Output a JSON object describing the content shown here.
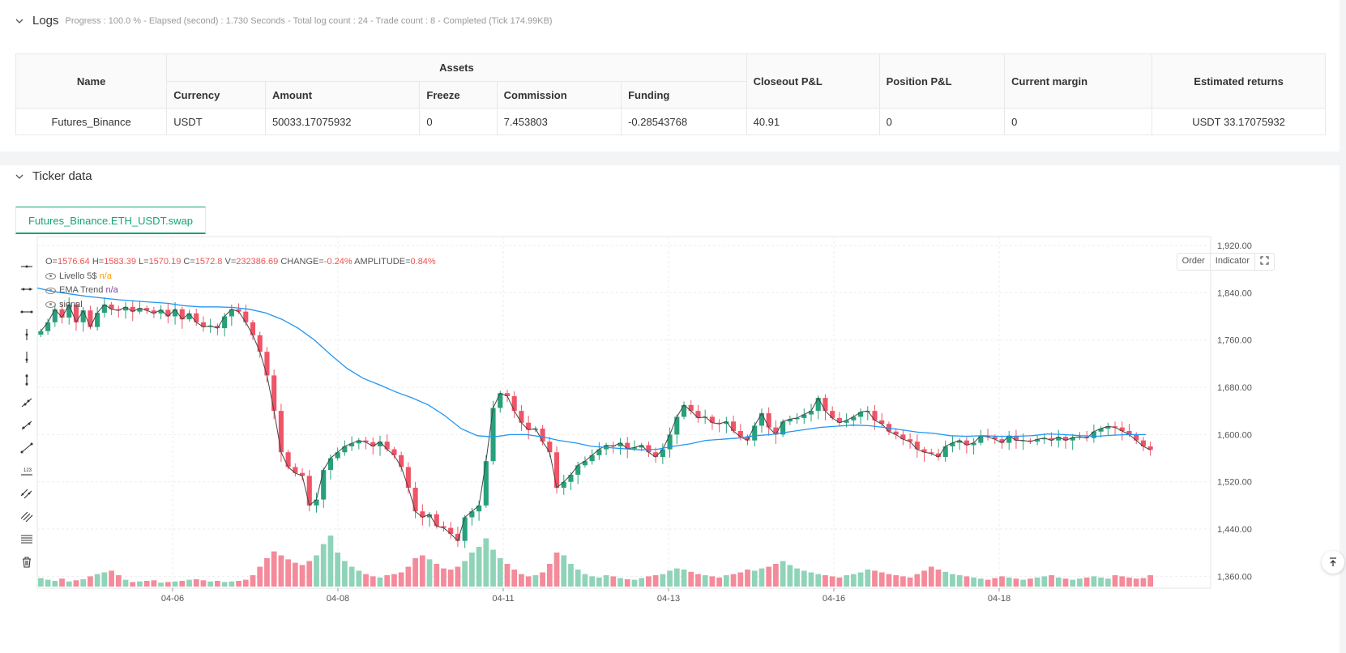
{
  "logs": {
    "title": "Logs",
    "summary": "Progress : 100.0 % - Elapsed (second) : 1.730  Seconds - Total log count : 24 - Trade count : 8 - Completed (Tick 174.99KB)",
    "table": {
      "name_header": "Name",
      "assets_header": "Assets",
      "sub_headers": [
        "Currency",
        "Amount",
        "Freeze",
        "Commission",
        "Funding"
      ],
      "closeout_header": "Closeout P&L",
      "position_header": "Position P&L",
      "margin_header": "Current margin",
      "returns_header": "Estimated returns",
      "row": {
        "name": "Futures_Binance",
        "currency": "USDT",
        "amount": "50033.17075932",
        "freeze": "0",
        "commission": "7.453803",
        "funding": "-0.28543768",
        "closeout": "40.91",
        "position": "0",
        "margin": "0",
        "returns": "USDT 33.17075932"
      }
    }
  },
  "ticker": {
    "title": "Ticker data",
    "tab_label": "Futures_Binance.ETH_USDT.swap",
    "ohlc": {
      "o_label": "O=",
      "o": "1576.64",
      "h_label": "H=",
      "h": "1583.39",
      "l_label": "L=",
      "l": "1570.19",
      "c_label": "C=",
      "c": "1572.8",
      "v_label": "V=",
      "v": "232386.69",
      "change_label": "CHANGE=",
      "change": "-0.24%",
      "amp_label": "AMPLITUDE=",
      "amp": "0.84%"
    },
    "indicators": [
      {
        "name": "Livello 5$",
        "value": "n/a",
        "color": "#f59e0b"
      },
      {
        "name": "EMA Trend",
        "value": "n/a",
        "color": "#7b3fa0"
      },
      {
        "name": "signal",
        "value": ""
      }
    ],
    "buttons": {
      "order": "Order",
      "indicator": "Indicator"
    },
    "tools": [
      "horizontal-ray-icon",
      "horizontal-line-icon",
      "horizontal-segment-icon",
      "vertical-ray-icon",
      "vertical-segment-icon",
      "vertical-line-icon",
      "trend-ray-icon",
      "trend-segment-icon",
      "trend-line-icon",
      "price-label-icon",
      "parallel-channel-icon",
      "fib-channel-icon",
      "fib-levels-icon",
      "delete-icon"
    ]
  },
  "chart_data": {
    "type": "candlestick",
    "title": "",
    "x_ticks": [
      "04-06",
      "04-08",
      "04-11",
      "04-13",
      "04-16",
      "04-18"
    ],
    "y_ticks": [
      "1,920.00",
      "1,840.00",
      "1,760.00",
      "1,680.00",
      "1,600.00",
      "1,520.00",
      "1,440.00",
      "1,360.00"
    ],
    "ylim": [
      1340,
      1935
    ],
    "colors": {
      "up": "#26a17b",
      "down": "#ef5467",
      "ema": "#2196f3",
      "close_line": "#444444"
    },
    "close_path": [
      1775,
      1790,
      1812,
      1798,
      1820,
      1790,
      1810,
      1782,
      1806,
      1820,
      1812,
      1810,
      1816,
      1808,
      1814,
      1810,
      1805,
      1811,
      1800,
      1812,
      1795,
      1805,
      1790,
      1782,
      1784,
      1780,
      1800,
      1812,
      1808,
      1790,
      1768,
      1740,
      1700,
      1640,
      1570,
      1545,
      1535,
      1530,
      1480,
      1490,
      1540,
      1560,
      1570,
      1580,
      1585,
      1590,
      1587,
      1580,
      1588,
      1575,
      1565,
      1545,
      1510,
      1470,
      1460,
      1465,
      1445,
      1442,
      1432,
      1420,
      1460,
      1470,
      1480,
      1555,
      1645,
      1670,
      1665,
      1640,
      1620,
      1608,
      1610,
      1588,
      1570,
      1510,
      1520,
      1532,
      1548,
      1555,
      1565,
      1575,
      1582,
      1580,
      1586,
      1576,
      1578,
      1582,
      1570,
      1562,
      1575,
      1600,
      1630,
      1650,
      1640,
      1628,
      1630,
      1620,
      1618,
      1622,
      1606,
      1596,
      1590,
      1615,
      1636,
      1612,
      1600,
      1622,
      1626,
      1628,
      1634,
      1640,
      1662,
      1640,
      1628,
      1620,
      1624,
      1630,
      1638,
      1640,
      1624,
      1618,
      1605,
      1600,
      1592,
      1588,
      1575,
      1570,
      1568,
      1562,
      1580,
      1586,
      1590,
      1582,
      1586,
      1598,
      1596,
      1592,
      1586,
      1598,
      1590,
      1590,
      1588,
      1592,
      1594,
      1590,
      1596,
      1590,
      1595,
      1596,
      1594,
      1605,
      1610,
      1614,
      1612,
      1606,
      1600,
      1590,
      1580,
      1574
    ],
    "ema_path": [
      1848,
      1842,
      1838,
      1834,
      1831,
      1828,
      1826,
      1824,
      1822,
      1818,
      1816,
      1816,
      1815,
      1812,
      1806,
      1795,
      1780,
      1760,
      1735,
      1712,
      1695,
      1684,
      1672,
      1662,
      1650,
      1632,
      1610,
      1598,
      1596,
      1600,
      1600,
      1596,
      1590,
      1586,
      1580,
      1578,
      1576,
      1574,
      1575,
      1580,
      1584,
      1590,
      1592,
      1594,
      1598,
      1600,
      1604,
      1608,
      1612,
      1614,
      1616,
      1615,
      1612,
      1608,
      1604,
      1602,
      1598,
      1597,
      1598,
      1597,
      1597,
      1598,
      1601,
      1600,
      1598,
      1597,
      1599,
      1600,
      1600
    ],
    "volumes": [
      0.15,
      0.12,
      0.1,
      0.14,
      0.09,
      0.11,
      0.13,
      0.18,
      0.22,
      0.25,
      0.28,
      0.2,
      0.12,
      0.08,
      0.09,
      0.1,
      0.11,
      0.07,
      0.08,
      0.09,
      0.1,
      0.12,
      0.13,
      0.11,
      0.09,
      0.1,
      0.08,
      0.09,
      0.1,
      0.12,
      0.2,
      0.35,
      0.5,
      0.62,
      0.55,
      0.48,
      0.42,
      0.38,
      0.45,
      0.55,
      0.75,
      0.9,
      0.6,
      0.45,
      0.35,
      0.28,
      0.22,
      0.18,
      0.16,
      0.2,
      0.22,
      0.25,
      0.35,
      0.5,
      0.55,
      0.48,
      0.4,
      0.32,
      0.3,
      0.35,
      0.45,
      0.6,
      0.7,
      0.85,
      0.65,
      0.5,
      0.4,
      0.3,
      0.22,
      0.18,
      0.2,
      0.25,
      0.4,
      0.6,
      0.55,
      0.4,
      0.3,
      0.22,
      0.18,
      0.16,
      0.2,
      0.18,
      0.15,
      0.13,
      0.12,
      0.15,
      0.18,
      0.2,
      0.22,
      0.28,
      0.32,
      0.3,
      0.26,
      0.22,
      0.2,
      0.18,
      0.16,
      0.2,
      0.22,
      0.25,
      0.3,
      0.28,
      0.32,
      0.35,
      0.4,
      0.45,
      0.38,
      0.32,
      0.28,
      0.25,
      0.22,
      0.2,
      0.18,
      0.16,
      0.2,
      0.22,
      0.25,
      0.3,
      0.28,
      0.25,
      0.22,
      0.2,
      0.18,
      0.16,
      0.22,
      0.28,
      0.35,
      0.3,
      0.26,
      0.22,
      0.2,
      0.18,
      0.16,
      0.14,
      0.12,
      0.15,
      0.18,
      0.16,
      0.14,
      0.12,
      0.14,
      0.16,
      0.18,
      0.2,
      0.16,
      0.14,
      0.12,
      0.14,
      0.16,
      0.18,
      0.16,
      0.14,
      0.2,
      0.18,
      0.16,
      0.14,
      0.15,
      0.2,
      0.16,
      0.12
    ]
  }
}
